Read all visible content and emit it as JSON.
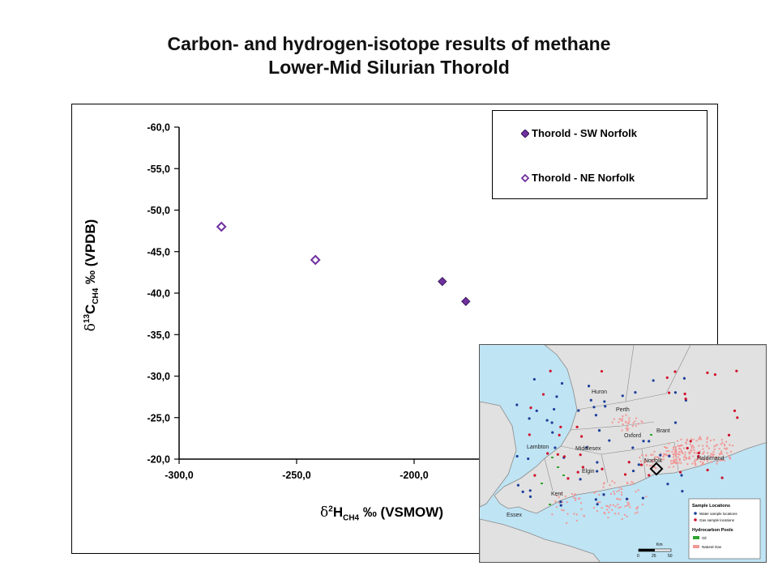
{
  "title": {
    "line1": "Carbon- and hydrogen-isotope results of methane",
    "line2": "Lower-Mid Silurian Thorold"
  },
  "chart_data": {
    "type": "scatter",
    "xlabel": "δ2H CH4 ‰ (VSMOW)",
    "ylabel": "δ13C CH4 ‰ (VPDB)",
    "xlim": [
      -300,
      -150
    ],
    "ylim": [
      -60,
      -20
    ],
    "y_reversed": true,
    "x_ticks": [
      "-300,0",
      "-250,0",
      "-200,0"
    ],
    "y_ticks": [
      "-60,0",
      "-55,0",
      "-50,0",
      "-45,0",
      "-40,0",
      "-35,0",
      "-30,0",
      "-25,0",
      "-20,0"
    ],
    "grid": false,
    "legend_position": "top-right",
    "series": [
      {
        "name": "Thorold - SW Norfolk",
        "marker": "diamond-filled",
        "color": "#7030a0",
        "points": [
          [
            -188,
            -41.4
          ],
          [
            -178,
            -39.0
          ]
        ]
      },
      {
        "name": "Thorold - NE Norfolk",
        "marker": "diamond-open",
        "color": "#7030a0",
        "points": [
          [
            -282,
            -48.0
          ],
          [
            -242,
            -44.0
          ]
        ]
      }
    ]
  },
  "axis_label_parts": {
    "y": {
      "delta": "δ",
      "sup": "13",
      "main": "C",
      "sub": "CH4",
      "rest": " ‰ (VPDB)"
    },
    "x": {
      "delta": "δ",
      "sup": "2",
      "main": "H",
      "sub": "CH4",
      "rest": " ‰ (VSMOW)"
    }
  },
  "map_inset": {
    "place_labels": [
      "Huron",
      "Perth",
      "Oxford",
      "Brant",
      "Lambton",
      "Middlesex",
      "Elgin",
      "Kent",
      "Essex",
      "Norfolk",
      "Haldimand"
    ],
    "legend": {
      "heading_samples": "Sample Locations",
      "water": "Water sample locations",
      "gas": "Gas sample locations",
      "heading_pools": "Hydrocarbon Pools",
      "oil": "Oil",
      "gas_pool": "Natural Gas"
    },
    "scale_label": "Km",
    "scale_ticks": [
      "0",
      "25",
      "50"
    ],
    "colors": {
      "water": "#bfe4f4",
      "land": "#e1e1e1",
      "water_dot": "#1c3f9a",
      "gas_dot": "#d0112b",
      "oil": "#2fa52f",
      "natural_gas": "#f29696"
    }
  }
}
